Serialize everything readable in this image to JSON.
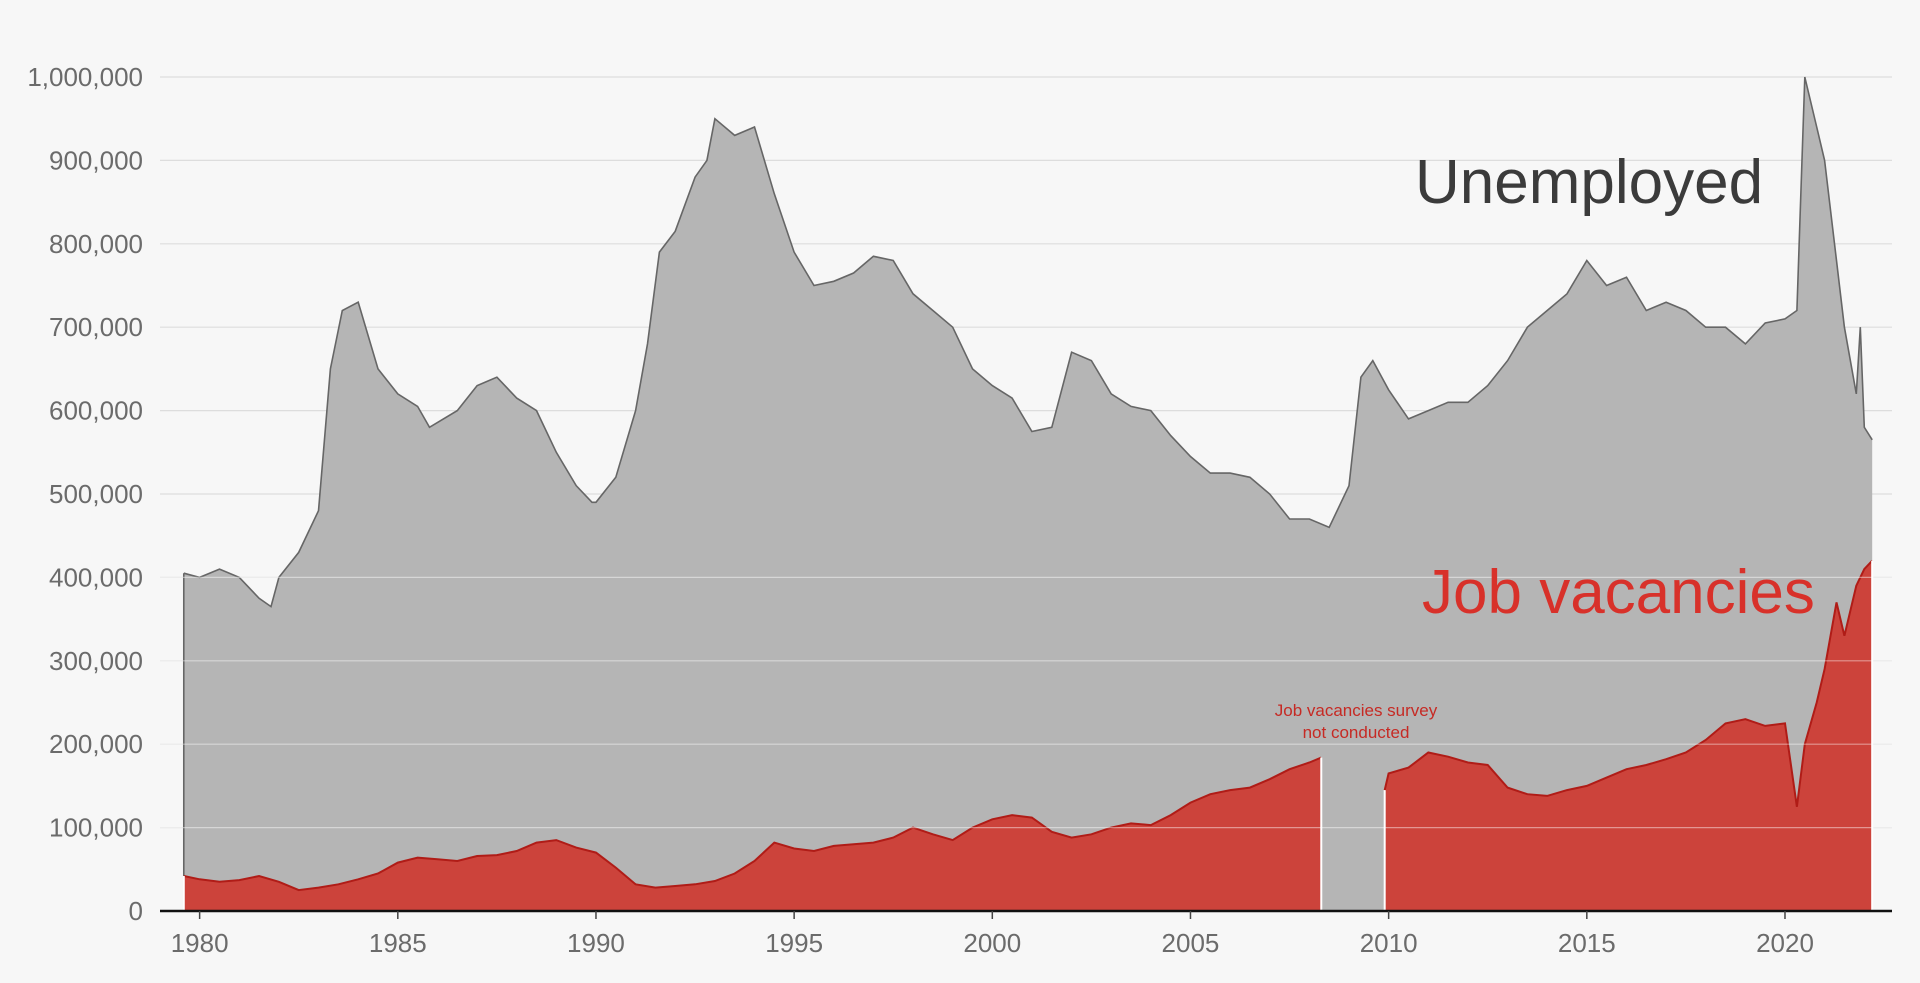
{
  "chart_data": {
    "type": "area",
    "title": "",
    "xlabel": "",
    "ylabel": "",
    "xlim": [
      1979.0,
      2022.7
    ],
    "ylim": [
      0,
      1000000
    ],
    "grid": true,
    "x_ticks": [
      1980,
      1985,
      1990,
      1995,
      2000,
      2005,
      2010,
      2015,
      2020
    ],
    "x_tick_labels": [
      "1980",
      "1985",
      "1990",
      "1995",
      "2000",
      "2005",
      "2010",
      "2015",
      "2020"
    ],
    "y_ticks": [
      0,
      100000,
      200000,
      300000,
      400000,
      500000,
      600000,
      700000,
      800000,
      900000,
      1000000
    ],
    "y_tick_labels": [
      "0",
      "100,000",
      "200,000",
      "300,000",
      "400,000",
      "500,000",
      "600,000",
      "700,000",
      "800,000",
      "900,000",
      "1,000,000"
    ],
    "series": [
      {
        "name": "Unemployed",
        "label": "Unemployed",
        "color": "#b5b5b5",
        "line_color": "#666666",
        "label_color": "#3b3b3b",
        "x": [
          1979.6,
          1980.0,
          1980.5,
          1981.0,
          1981.5,
          1981.8,
          1982.0,
          1982.5,
          1983.0,
          1983.3,
          1983.6,
          1984.0,
          1984.5,
          1985.0,
          1985.5,
          1985.8,
          1986.5,
          1987.0,
          1987.5,
          1988.0,
          1988.5,
          1989.0,
          1989.5,
          1989.9,
          1990.0,
          1990.5,
          1991.0,
          1991.3,
          1991.6,
          1992.0,
          1992.5,
          1992.8,
          1993.0,
          1993.5,
          1994.0,
          1994.5,
          1995.0,
          1995.5,
          1996.0,
          1996.5,
          1997.0,
          1997.5,
          1998.0,
          1998.5,
          1999.0,
          1999.5,
          2000.0,
          2000.5,
          2001.0,
          2001.5,
          2002.0,
          2002.5,
          2003.0,
          2003.5,
          2004.0,
          2004.5,
          2005.0,
          2005.5,
          2006.0,
          2006.5,
          2007.0,
          2007.5,
          2008.0,
          2008.5,
          2009.0,
          2009.3,
          2009.6,
          2010.0,
          2010.5,
          2011.0,
          2011.5,
          2012.0,
          2012.5,
          2013.0,
          2013.5,
          2014.0,
          2014.5,
          2015.0,
          2015.5,
          2016.0,
          2016.5,
          2017.0,
          2017.5,
          2018.0,
          2018.5,
          2019.0,
          2019.5,
          2020.0,
          2020.3,
          2020.5,
          2020.8,
          2021.0,
          2021.3,
          2021.5,
          2021.8,
          2021.9,
          2022.0,
          2022.2
        ],
        "values": [
          405000,
          400000,
          410000,
          400000,
          375000,
          365000,
          400000,
          430000,
          480000,
          650000,
          720000,
          730000,
          650000,
          620000,
          605000,
          580000,
          600000,
          630000,
          640000,
          615000,
          600000,
          550000,
          510000,
          490000,
          490000,
          520000,
          600000,
          680000,
          790000,
          815000,
          880000,
          900000,
          950000,
          930000,
          940000,
          860000,
          790000,
          750000,
          755000,
          765000,
          785000,
          780000,
          740000,
          720000,
          700000,
          650000,
          630000,
          615000,
          575000,
          580000,
          670000,
          660000,
          620000,
          605000,
          600000,
          570000,
          545000,
          525000,
          525000,
          520000,
          500000,
          470000,
          470000,
          460000,
          510000,
          640000,
          660000,
          625000,
          590000,
          600000,
          610000,
          610000,
          630000,
          660000,
          700000,
          720000,
          740000,
          780000,
          750000,
          760000,
          720000,
          730000,
          720000,
          700000,
          700000,
          680000,
          705000,
          710000,
          720000,
          1000000,
          940000,
          900000,
          780000,
          700000,
          620000,
          700000,
          580000,
          565000
        ]
      },
      {
        "name": "Job vacancies",
        "label": "Job vacancies",
        "color": "#cc433b",
        "line_color": "#b01c17",
        "label_color": "#d8312a",
        "segments": [
          {
            "x": [
              1979.6,
              1980.0,
              1980.5,
              1981.0,
              1981.5,
              1982.0,
              1982.5,
              1983.0,
              1983.5,
              1984.0,
              1984.5,
              1985.0,
              1985.5,
              1986.0,
              1986.5,
              1987.0,
              1987.5,
              1988.0,
              1988.5,
              1989.0,
              1989.5,
              1990.0,
              1990.5,
              1991.0,
              1991.5,
              1992.0,
              1992.5,
              1993.0,
              1993.5,
              1994.0,
              1994.5,
              1995.0,
              1995.5,
              1996.0,
              1996.5,
              1997.0,
              1997.5,
              1998.0,
              1998.5,
              1999.0,
              1999.5,
              2000.0,
              2000.5,
              2001.0,
              2001.5,
              2002.0,
              2002.5,
              2003.0,
              2003.5,
              2004.0,
              2004.5,
              2005.0,
              2005.5,
              2006.0,
              2006.5,
              2007.0,
              2007.5,
              2008.0,
              2008.3
            ],
            "values": [
              42000,
              38000,
              35000,
              37000,
              42000,
              35000,
              25000,
              28000,
              32000,
              38000,
              45000,
              58000,
              64000,
              62000,
              60000,
              66000,
              67000,
              72000,
              82000,
              85000,
              76000,
              70000,
              52000,
              32000,
              28000,
              30000,
              32000,
              36000,
              45000,
              60000,
              82000,
              75000,
              72000,
              78000,
              80000,
              82000,
              88000,
              100000,
              92000,
              85000,
              100000,
              110000,
              115000,
              112000,
              95000,
              88000,
              92000,
              100000,
              105000,
              103000,
              115000,
              130000,
              140000,
              145000,
              148000,
              158000,
              170000,
              178000,
              184000
            ]
          },
          {
            "x": [
              2009.9,
              2010.0,
              2010.5,
              2011.0,
              2011.5,
              2012.0,
              2012.5,
              2013.0,
              2013.5,
              2014.0,
              2014.5,
              2015.0,
              2015.5,
              2016.0,
              2016.5,
              2017.0,
              2017.5,
              2018.0,
              2018.5,
              2019.0,
              2019.5,
              2020.0,
              2020.3,
              2020.5,
              2020.8,
              2021.0,
              2021.3,
              2021.5,
              2021.8,
              2022.0,
              2022.2
            ],
            "values": [
              145000,
              165000,
              172000,
              190000,
              185000,
              178000,
              175000,
              148000,
              140000,
              138000,
              145000,
              150000,
              160000,
              170000,
              175000,
              182000,
              190000,
              205000,
              225000,
              230000,
              222000,
              225000,
              125000,
              200000,
              250000,
              290000,
              370000,
              330000,
              390000,
              410000,
              420000
            ]
          }
        ]
      }
    ],
    "annotations": [
      {
        "text_line1": "Job vacancies survey",
        "text_line2": "not conducted",
        "x": 2008.8
      }
    ]
  }
}
